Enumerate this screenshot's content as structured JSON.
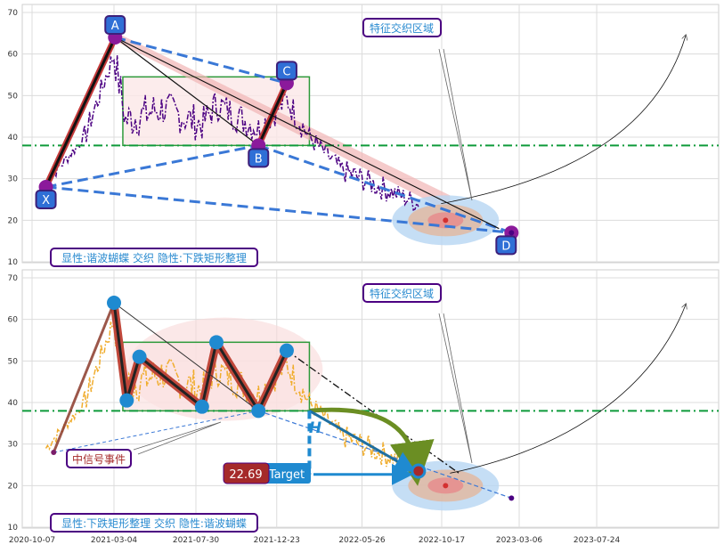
{
  "chart_data": [
    {
      "type": "line",
      "panel": "top",
      "ylim": [
        10,
        70
      ],
      "yticks": [
        10,
        20,
        30,
        40,
        50,
        60,
        70
      ],
      "grid": true,
      "horizontal_line": 38,
      "pattern_points": [
        {
          "label": "X",
          "x": "2020-11-01",
          "y": 28
        },
        {
          "label": "A",
          "x": "2021-03-06",
          "y": 64
        },
        {
          "label": "B",
          "x": "2021-11-20",
          "y": 38
        },
        {
          "label": "C",
          "x": "2022-01-10",
          "y": 53
        },
        {
          "label": "D",
          "x": "2023-02-20",
          "y": 17
        }
      ],
      "rectangle": {
        "x_start": "2021-03-20",
        "x_end": "2022-02-20",
        "y_low": 38,
        "y_high": 54.5
      },
      "target_zone": {
        "x": "2022-11-01",
        "y": 20
      },
      "annotation": "特征交织区域",
      "legend_text": "显性:谐波蝴蝶 交织 隐性:下跌矩形整理"
    },
    {
      "type": "line",
      "panel": "bottom",
      "ylim": [
        10,
        70
      ],
      "yticks": [
        10,
        20,
        30,
        40,
        50,
        60,
        70
      ],
      "grid": true,
      "horizontal_line": 38,
      "pattern_points": [
        {
          "x": "2021-03-04",
          "y": 64
        },
        {
          "x": "2021-03-27",
          "y": 40.5
        },
        {
          "x": "2021-04-19",
          "y": 51
        },
        {
          "x": "2021-08-10",
          "y": 39
        },
        {
          "x": "2021-09-05",
          "y": 54.5
        },
        {
          "x": "2021-11-20",
          "y": 38
        },
        {
          "x": "2022-01-10",
          "y": 52.5
        },
        {
          "x": "2022-09-05",
          "y": 23.5
        }
      ],
      "rectangle": {
        "x_start": "2021-03-20",
        "x_end": "2022-02-20",
        "y_low": 38,
        "y_high": 54.5
      },
      "target_value": "22.69",
      "target_label": "Target",
      "h_marker": "H",
      "signal_label": "中信号事件",
      "annotation": "特征交织区域",
      "legend_text": "显性:下跌矩形整理 交织 隐性:谐波蝴蝶"
    }
  ],
  "x_axis": {
    "ticks": [
      "2020-10-07",
      "2021-03-04",
      "2021-07-30",
      "2021-12-23",
      "2022-05-26",
      "2022-10-17",
      "2023-03-06",
      "2023-07-24"
    ]
  },
  "colors": {
    "price_top": "#4b0082",
    "price_bottom": "#f0ad2e",
    "dashed_blue": "#3a78d6",
    "green_line": "#0e9a3a",
    "box_border": "#3a9a3a",
    "label_bg": "#2f6fd6",
    "label_border": "#3d1f7a",
    "target_red": "#a52a2a",
    "target_blue": "#1f8ad0"
  }
}
